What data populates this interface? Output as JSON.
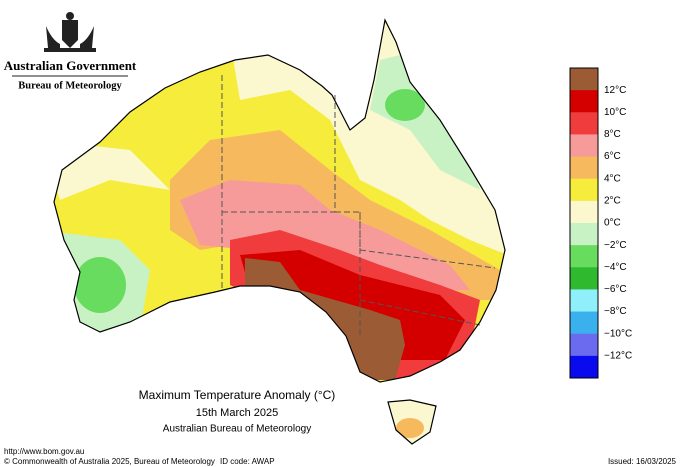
{
  "header": {
    "government": "Australian Government",
    "agency": "Bureau of Meteorology"
  },
  "legend": {
    "labels": [
      "12°C",
      "10°C",
      "8°C",
      "6°C",
      "4°C",
      "2°C",
      "0°C",
      "−2°C",
      "−4°C",
      "−6°C",
      "−8°C",
      "−10°C",
      "−12°C"
    ],
    "colors": [
      "#9b5b35",
      "#d40000",
      "#f03c3c",
      "#f79a9a",
      "#f6b95e",
      "#f5ec3c",
      "#fbf8cf",
      "#c9f2c4",
      "#68dc5e",
      "#2fb92f",
      "#8ff0fb",
      "#3ab0ec",
      "#6b6bf0",
      "#0a0aee"
    ]
  },
  "title": {
    "line1": "Maximum Temperature Anomaly (°C)",
    "line2": "15th March 2025",
    "line3": "Australian Bureau of Meteorology"
  },
  "footer": {
    "url": "http://www.bom.gov.au",
    "copyright": "© Commonwealth of Australia 2025, Bureau of Meteorology",
    "id_code": "ID code: AWAP",
    "issued": "Issued: 16/03/2025"
  }
}
